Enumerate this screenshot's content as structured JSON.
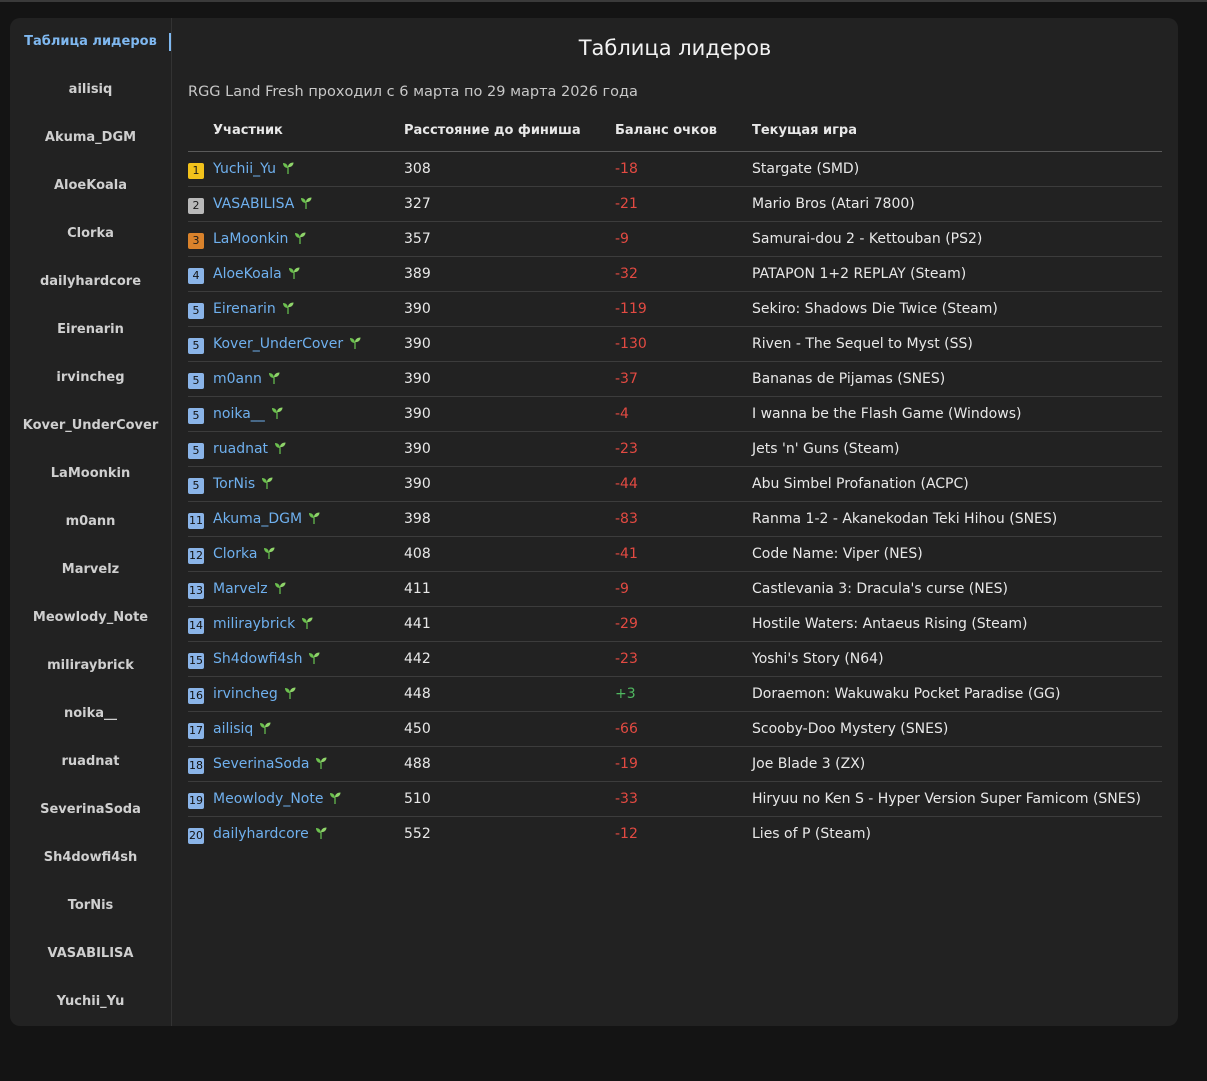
{
  "sidebar": {
    "items": [
      {
        "label": "Таблица лидеров",
        "active": true
      },
      {
        "label": "ailisiq"
      },
      {
        "label": "Akuma_DGM"
      },
      {
        "label": "AloeKoala"
      },
      {
        "label": "Clorka"
      },
      {
        "label": "dailyhardcore"
      },
      {
        "label": "Eirenarin"
      },
      {
        "label": "irvincheg"
      },
      {
        "label": "Kover_UnderCover"
      },
      {
        "label": "LaMoonkin"
      },
      {
        "label": "m0ann"
      },
      {
        "label": "Marvelz"
      },
      {
        "label": "Meowlody_Note"
      },
      {
        "label": "miliraybrick"
      },
      {
        "label": "noika__"
      },
      {
        "label": "ruadnat"
      },
      {
        "label": "SeverinaSoda"
      },
      {
        "label": "Sh4dowfi4sh"
      },
      {
        "label": "TorNis"
      },
      {
        "label": "VASABILISA"
      },
      {
        "label": "Yuchii_Yu"
      }
    ]
  },
  "main": {
    "title": "Таблица лидеров",
    "subtitle": "RGG Land Fresh проходил с 6 марта по 29 марта 2026 года"
  },
  "table": {
    "headers": {
      "participant": "Участник",
      "distance": "Расстояние до финиша",
      "balance": "Баланс очков",
      "game": "Текущая игра"
    },
    "rows": [
      {
        "rank": "1",
        "name": "Yuchii_Yu",
        "distance": "308",
        "balance": "-18",
        "game": "Stargate (SMD)"
      },
      {
        "rank": "2",
        "name": "VASABILISA",
        "distance": "327",
        "balance": "-21",
        "game": "Mario Bros (Atari 7800)"
      },
      {
        "rank": "3",
        "name": "LaMoonkin",
        "distance": "357",
        "balance": "-9",
        "game": "Samurai-dou 2 - Kettouban (PS2)"
      },
      {
        "rank": "4",
        "name": "AloeKoala",
        "distance": "389",
        "balance": "-32",
        "game": "PATAPON 1+2 REPLAY (Steam)"
      },
      {
        "rank": "5",
        "name": "Eirenarin",
        "distance": "390",
        "balance": "-119",
        "game": "Sekiro: Shadows Die Twice (Steam)"
      },
      {
        "rank": "5",
        "name": "Kover_UnderCover",
        "distance": "390",
        "balance": "-130",
        "game": "Riven - The Sequel to Myst (SS)"
      },
      {
        "rank": "5",
        "name": "m0ann",
        "distance": "390",
        "balance": "-37",
        "game": "Bananas de Pijamas (SNES)"
      },
      {
        "rank": "5",
        "name": "noika__",
        "distance": "390",
        "balance": "-4",
        "game": "I wanna be the Flash Game (Windows)"
      },
      {
        "rank": "5",
        "name": "ruadnat",
        "distance": "390",
        "balance": "-23",
        "game": "Jets 'n' Guns (Steam)"
      },
      {
        "rank": "5",
        "name": "TorNis",
        "distance": "390",
        "balance": "-44",
        "game": "Abu Simbel Profanation (ACPC)"
      },
      {
        "rank": "11",
        "name": "Akuma_DGM",
        "distance": "398",
        "balance": "-83",
        "game": "Ranma 1-2 - Akanekodan Teki Hihou (SNES)"
      },
      {
        "rank": "12",
        "name": "Clorka",
        "distance": "408",
        "balance": "-41",
        "game": "Code Name: Viper (NES)"
      },
      {
        "rank": "13",
        "name": "Marvelz",
        "distance": "411",
        "balance": "-9",
        "game": "Castlevania 3: Dracula's curse (NES)"
      },
      {
        "rank": "14",
        "name": "miliraybrick",
        "distance": "441",
        "balance": "-29",
        "game": "Hostile Waters: Antaeus Rising (Steam)"
      },
      {
        "rank": "15",
        "name": "Sh4dowfi4sh",
        "distance": "442",
        "balance": "-23",
        "game": "Yoshi's Story (N64)"
      },
      {
        "rank": "16",
        "name": "irvincheg",
        "distance": "448",
        "balance": "+3",
        "game": "Doraemon: Wakuwaku Pocket Paradise (GG)"
      },
      {
        "rank": "17",
        "name": "ailisiq",
        "distance": "450",
        "balance": "-66",
        "game": "Scooby-Doo Mystery (SNES)"
      },
      {
        "rank": "18",
        "name": "SeverinaSoda",
        "distance": "488",
        "balance": "-19",
        "game": "Joe Blade 3 (ZX)"
      },
      {
        "rank": "19",
        "name": "Meowlody_Note",
        "distance": "510",
        "balance": "-33",
        "game": "Hiryuu no Ken S - Hyper Version Super Famicom (SNES)"
      },
      {
        "rank": "20",
        "name": "dailyhardcore",
        "distance": "552",
        "balance": "-12",
        "game": "Lies of P (Steam)"
      }
    ]
  },
  "icons": {
    "sprout": "sprout-icon"
  },
  "colors": {
    "link": "#6fb0ee",
    "negative": "#e24a42",
    "positive": "#4fb860",
    "gold": "#f2c21b",
    "silver": "#b9b9b9",
    "bronze": "#d9822b",
    "rank_default": "#8ab4e8"
  }
}
